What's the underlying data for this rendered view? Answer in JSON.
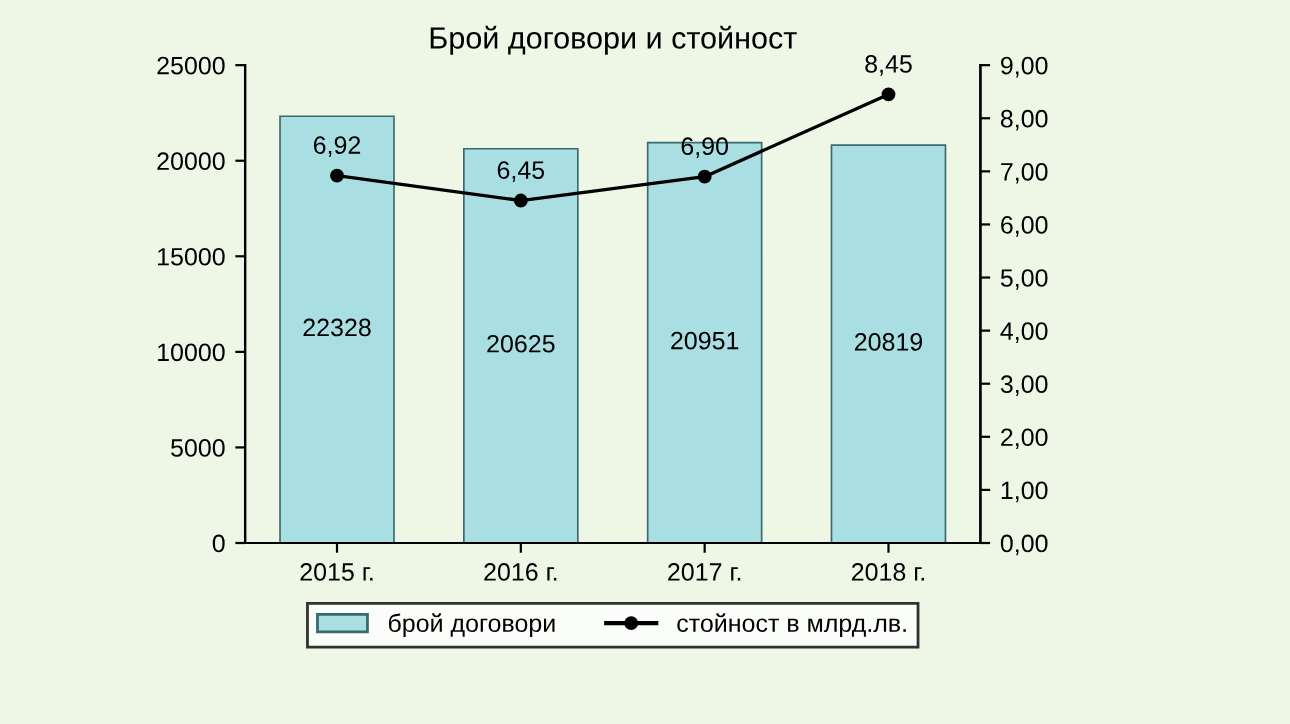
{
  "chart_data": {
    "type": "bar",
    "title": "Брой договори и стойност",
    "categories": [
      "2015 г.",
      "2016 г.",
      "2017 г.",
      "2018 г."
    ],
    "series": [
      {
        "name": "брой договори",
        "color": "#a9dfe3",
        "values": [
          22328,
          20625,
          20951,
          20819
        ],
        "value_labels": [
          "22328",
          "20625",
          "20951",
          "20819"
        ]
      },
      {
        "name": "стойност в млрд.лв.",
        "type": "line",
        "axis": "y2",
        "color": "#000000",
        "values": [
          6.92,
          6.45,
          6.9,
          8.45
        ],
        "value_labels": [
          "6,92",
          "6,45",
          "6,90",
          "8,45"
        ],
        "marker": "circle"
      }
    ],
    "ylim": [
      0,
      25000
    ],
    "yticks": [
      0,
      5000,
      10000,
      15000,
      20000,
      25000
    ],
    "y2lim": [
      0,
      9
    ],
    "y2ticks": [
      {
        "value": 0,
        "label": "0,00"
      },
      {
        "value": 1,
        "label": "1,00"
      },
      {
        "value": 2,
        "label": "2,00"
      },
      {
        "value": 3,
        "label": "3,00"
      },
      {
        "value": 4,
        "label": "4,00"
      },
      {
        "value": 5,
        "label": "5,00"
      },
      {
        "value": 6,
        "label": "6,00"
      },
      {
        "value": 7,
        "label": "7,00"
      },
      {
        "value": 8,
        "label": "8,00"
      },
      {
        "value": 9,
        "label": "9,00"
      }
    ],
    "grid": false,
    "legend": "bottom"
  }
}
